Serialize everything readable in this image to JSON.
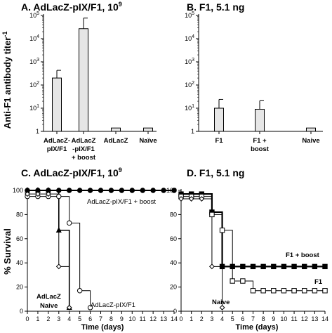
{
  "chart_data": [
    {
      "id": "A",
      "type": "bar",
      "title": "A. AdLacZ-pIX/F1, 10",
      "title_sup": "9",
      "ylabel": "Anti-F1 antibody titer",
      "ylabel_sup": "-1",
      "yscale": "log",
      "ylim": [
        1,
        100000
      ],
      "yticks": [
        "1",
        "10",
        "10",
        "10",
        "10",
        "10"
      ],
      "ytick_sups": [
        "",
        "1",
        "2",
        "3",
        "4",
        "5"
      ],
      "categories": [
        [
          "AdLacZ-",
          "pIX/F1"
        ],
        [
          "AdLacZ",
          "-pIX/F1",
          "+ boost"
        ],
        [
          "AdLacZ"
        ],
        [
          "Naïve"
        ]
      ],
      "values": [
        200,
        27000,
        1.4,
        1.4
      ],
      "errors": [
        230,
        50000,
        0,
        0
      ],
      "bar_color": "#e6e6e6"
    },
    {
      "id": "B",
      "type": "bar",
      "title": "B. F1, 5.1 ng",
      "yscale": "log",
      "ylim": [
        1,
        100000
      ],
      "yticks": [
        "1",
        "10",
        "10",
        "10",
        "10",
        "10"
      ],
      "ytick_sups": [
        "",
        "1",
        "2",
        "3",
        "4",
        "5"
      ],
      "categories": [
        [
          "F1"
        ],
        [
          "F1 +",
          "boost"
        ],
        [
          "Naive"
        ]
      ],
      "values": [
        10,
        9,
        1.4
      ],
      "errors": [
        14,
        12,
        0
      ],
      "bar_color": "#e6e6e6"
    },
    {
      "id": "C",
      "type": "line",
      "step": true,
      "title": "C. AdLacZ-pIX/F1, 10",
      "title_sup": "9",
      "ylabel": "% Survival",
      "xlabel": "Time (days)",
      "xlim": [
        0,
        14
      ],
      "ylim": [
        0,
        100
      ],
      "xticks": [
        0,
        1,
        2,
        3,
        4,
        5,
        6,
        7,
        8,
        9,
        10,
        11,
        12,
        13,
        14
      ],
      "yticks": [
        0,
        20,
        40,
        60,
        80,
        100
      ],
      "series": [
        {
          "name": "AdLacZ-pIX/F1 + boost",
          "marker": "filled-circle",
          "x": [
            0,
            1,
            2,
            3,
            4,
            5,
            6,
            7,
            8,
            9,
            10,
            11,
            12,
            13,
            14
          ],
          "y": [
            100,
            100,
            100,
            100,
            100,
            100,
            100,
            100,
            100,
            100,
            100,
            100,
            100,
            100,
            100
          ]
        },
        {
          "name": "AdLacZ-pIX/F1",
          "marker": "open-circle",
          "x": [
            0,
            1,
            2,
            3,
            4,
            5,
            6
          ],
          "y": [
            95,
            95,
            95,
            95,
            73,
            17,
            3
          ]
        },
        {
          "name": "AdLacZ",
          "marker": "filled-triangle",
          "x": [
            0,
            1,
            2,
            3,
            4
          ],
          "y": [
            100,
            100,
            100,
            67,
            3
          ]
        },
        {
          "name": "Naive",
          "marker": "open-diamond",
          "x": [
            0,
            1,
            2,
            3,
            4
          ],
          "y": [
            97,
            97,
            97,
            37,
            3
          ]
        }
      ]
    },
    {
      "id": "D",
      "type": "line",
      "step": true,
      "title": "D. F1, 5.1 ng",
      "xlabel": "Time (days)",
      "xlim": [
        0,
        14
      ],
      "ylim": [
        0,
        100
      ],
      "xticks": [
        0,
        1,
        2,
        3,
        4,
        5,
        6,
        7,
        8,
        9,
        10,
        11,
        12,
        13,
        14
      ],
      "yticks": [
        0,
        20,
        40,
        60,
        80,
        100
      ],
      "series": [
        {
          "name": "F1 + boost",
          "marker": "filled-square",
          "x": [
            0,
            1,
            2,
            3,
            4,
            5,
            6,
            7,
            8,
            9,
            10,
            11,
            12,
            13,
            14
          ],
          "y": [
            97,
            97,
            97,
            82,
            37,
            37,
            37,
            37,
            37,
            37,
            37,
            37,
            37,
            37,
            37
          ]
        },
        {
          "name": "F1",
          "marker": "open-square",
          "x": [
            0,
            1,
            2,
            3,
            4,
            5,
            6,
            7,
            8,
            9,
            10,
            11,
            12,
            13,
            14
          ],
          "y": [
            95,
            95,
            95,
            80,
            67,
            25,
            25,
            17,
            17,
            17,
            17,
            17,
            17,
            17,
            17
          ]
        },
        {
          "name": "Naive",
          "marker": "open-diamond",
          "x": [
            0,
            1,
            2,
            3,
            4
          ],
          "y": [
            93,
            93,
            93,
            37,
            3
          ]
        }
      ]
    }
  ],
  "colors": {
    "bar_fill": "#e6e6e6",
    "ink": "#000000",
    "open_marker_fill": "#ffffff"
  }
}
